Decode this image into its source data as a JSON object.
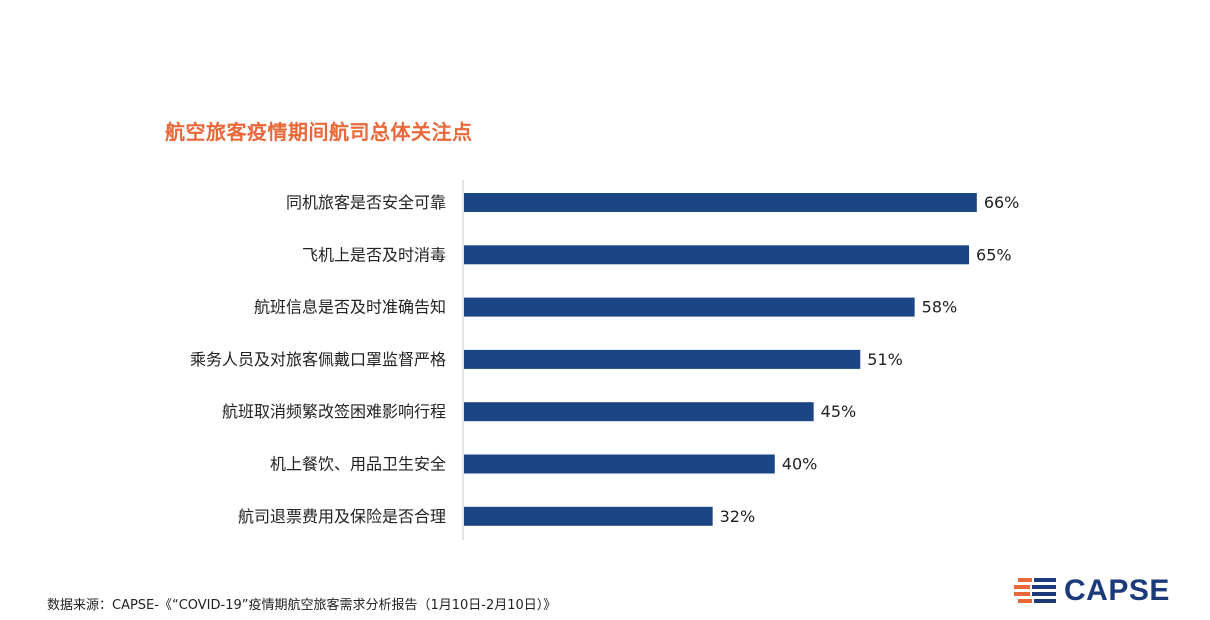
{
  "chart_data": {
    "type": "bar",
    "orientation": "horizontal",
    "title": "航空旅客疫情期间航司总体关注点",
    "categories": [
      "同机旅客是否安全可靠",
      "飞机上是否及时消毒",
      "航班信息是否及时准确告知",
      "乘务人员及对旅客佩戴口罩监督严格",
      "航班取消频繁改签困难影响行程",
      "机上餐饮、用品卫生安全",
      "航司退票费用及保险是否合理"
    ],
    "values": [
      66,
      65,
      58,
      51,
      45,
      40,
      32
    ],
    "value_labels": [
      "66%",
      "65%",
      "58%",
      "51%",
      "45%",
      "40%",
      "32%"
    ],
    "unit": "%",
    "xlim": [
      0,
      100
    ],
    "bar_color": "#1c4585",
    "grid": false,
    "legend": "none"
  },
  "footer": {
    "source": "数据来源：CAPSE-《“COVID-19”疫情期航空旅客需求分析报告（1月10日-2月10日）》"
  },
  "logo": {
    "text": "CAPSE",
    "icon": "striped-lines-logo-icon",
    "colors": {
      "blue": "#1c3a7a",
      "orange": "#e8683a"
    }
  },
  "colors": {
    "title": "#e8683a",
    "bar": "#1c4585",
    "axis": "#cccccc"
  }
}
